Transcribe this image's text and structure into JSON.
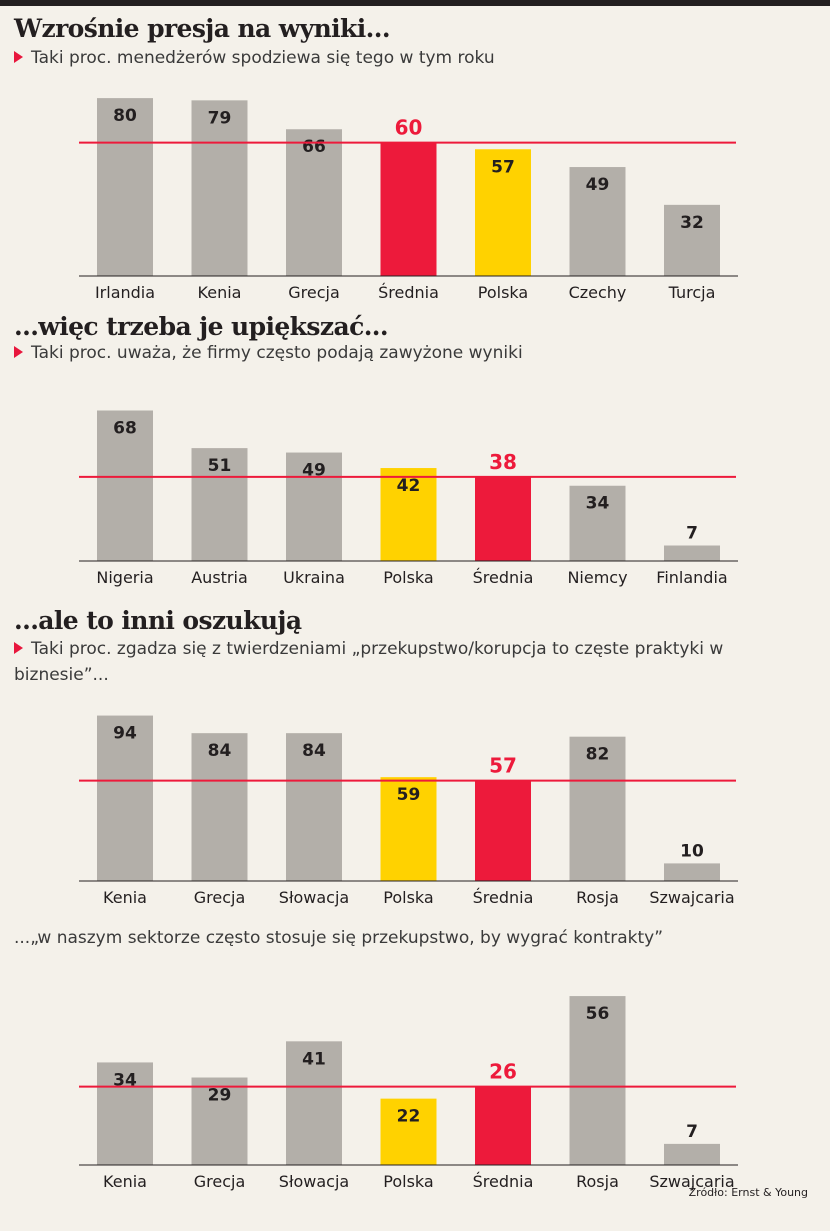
{
  "colors": {
    "gray": "#b3afa9",
    "red": "#ed1a3b",
    "yellow": "#ffd200",
    "line": "#ed1a3b",
    "axis": "#231f20",
    "text": "#231f20"
  },
  "source": "Źródło: Ernst & Young",
  "chart_data": [
    {
      "type": "bar",
      "title": "Wzrośnie presja na wyniki...",
      "subtitle": "Taki proc. menedżerów spodziewa się tego w tym roku",
      "categories": [
        "Irlandia",
        "Kenia",
        "Grecja",
        "Średnia",
        "Polska",
        "Czechy",
        "Turcja"
      ],
      "values": [
        80,
        79,
        66,
        60,
        57,
        49,
        32
      ],
      "highlight": [
        "gray",
        "gray",
        "gray",
        "red",
        "yellow",
        "gray",
        "gray"
      ],
      "reference_value": 60,
      "ylim": [
        0,
        85
      ]
    },
    {
      "type": "bar",
      "title": "...więc trzeba je upiększać...",
      "subtitle": "Taki proc. uważa, że firmy często podają zawyżone wyniki",
      "categories": [
        "Nigeria",
        "Austria",
        "Ukraina",
        "Polska",
        "Średnia",
        "Niemcy",
        "Finlandia"
      ],
      "values": [
        68,
        51,
        49,
        42,
        38,
        34,
        7
      ],
      "highlight": [
        "gray",
        "gray",
        "gray",
        "yellow",
        "red",
        "gray",
        "gray"
      ],
      "reference_value": 38,
      "ylim": [
        0,
        75
      ]
    },
    {
      "type": "bar",
      "title": "...ale to inni oszukują",
      "subtitle": "Taki proc. zgadza się z twierdzeniami „przekupstwo/korupcja to częste praktyki w biznesie”...",
      "categories": [
        "Kenia",
        "Grecja",
        "Słowacja",
        "Polska",
        "Średnia",
        "Rosja",
        "Szwajcaria"
      ],
      "values": [
        94,
        84,
        84,
        59,
        57,
        82,
        10
      ],
      "highlight": [
        "gray",
        "gray",
        "gray",
        "yellow",
        "red",
        "gray",
        "gray"
      ],
      "reference_value": 57,
      "ylim": [
        0,
        100
      ]
    },
    {
      "type": "bar",
      "subtitle": "...„w naszym sektorze często stosuje się przekupstwo, by wygrać kontrakty”",
      "categories": [
        "Kenia",
        "Grecja",
        "Słowacja",
        "Polska",
        "Średnia",
        "Rosja",
        "Szwajcaria"
      ],
      "values": [
        34,
        29,
        41,
        22,
        26,
        56,
        7
      ],
      "highlight": [
        "gray",
        "gray",
        "gray",
        "yellow",
        "red",
        "gray",
        "gray"
      ],
      "reference_value": 26,
      "ylim": [
        0,
        60
      ]
    }
  ]
}
